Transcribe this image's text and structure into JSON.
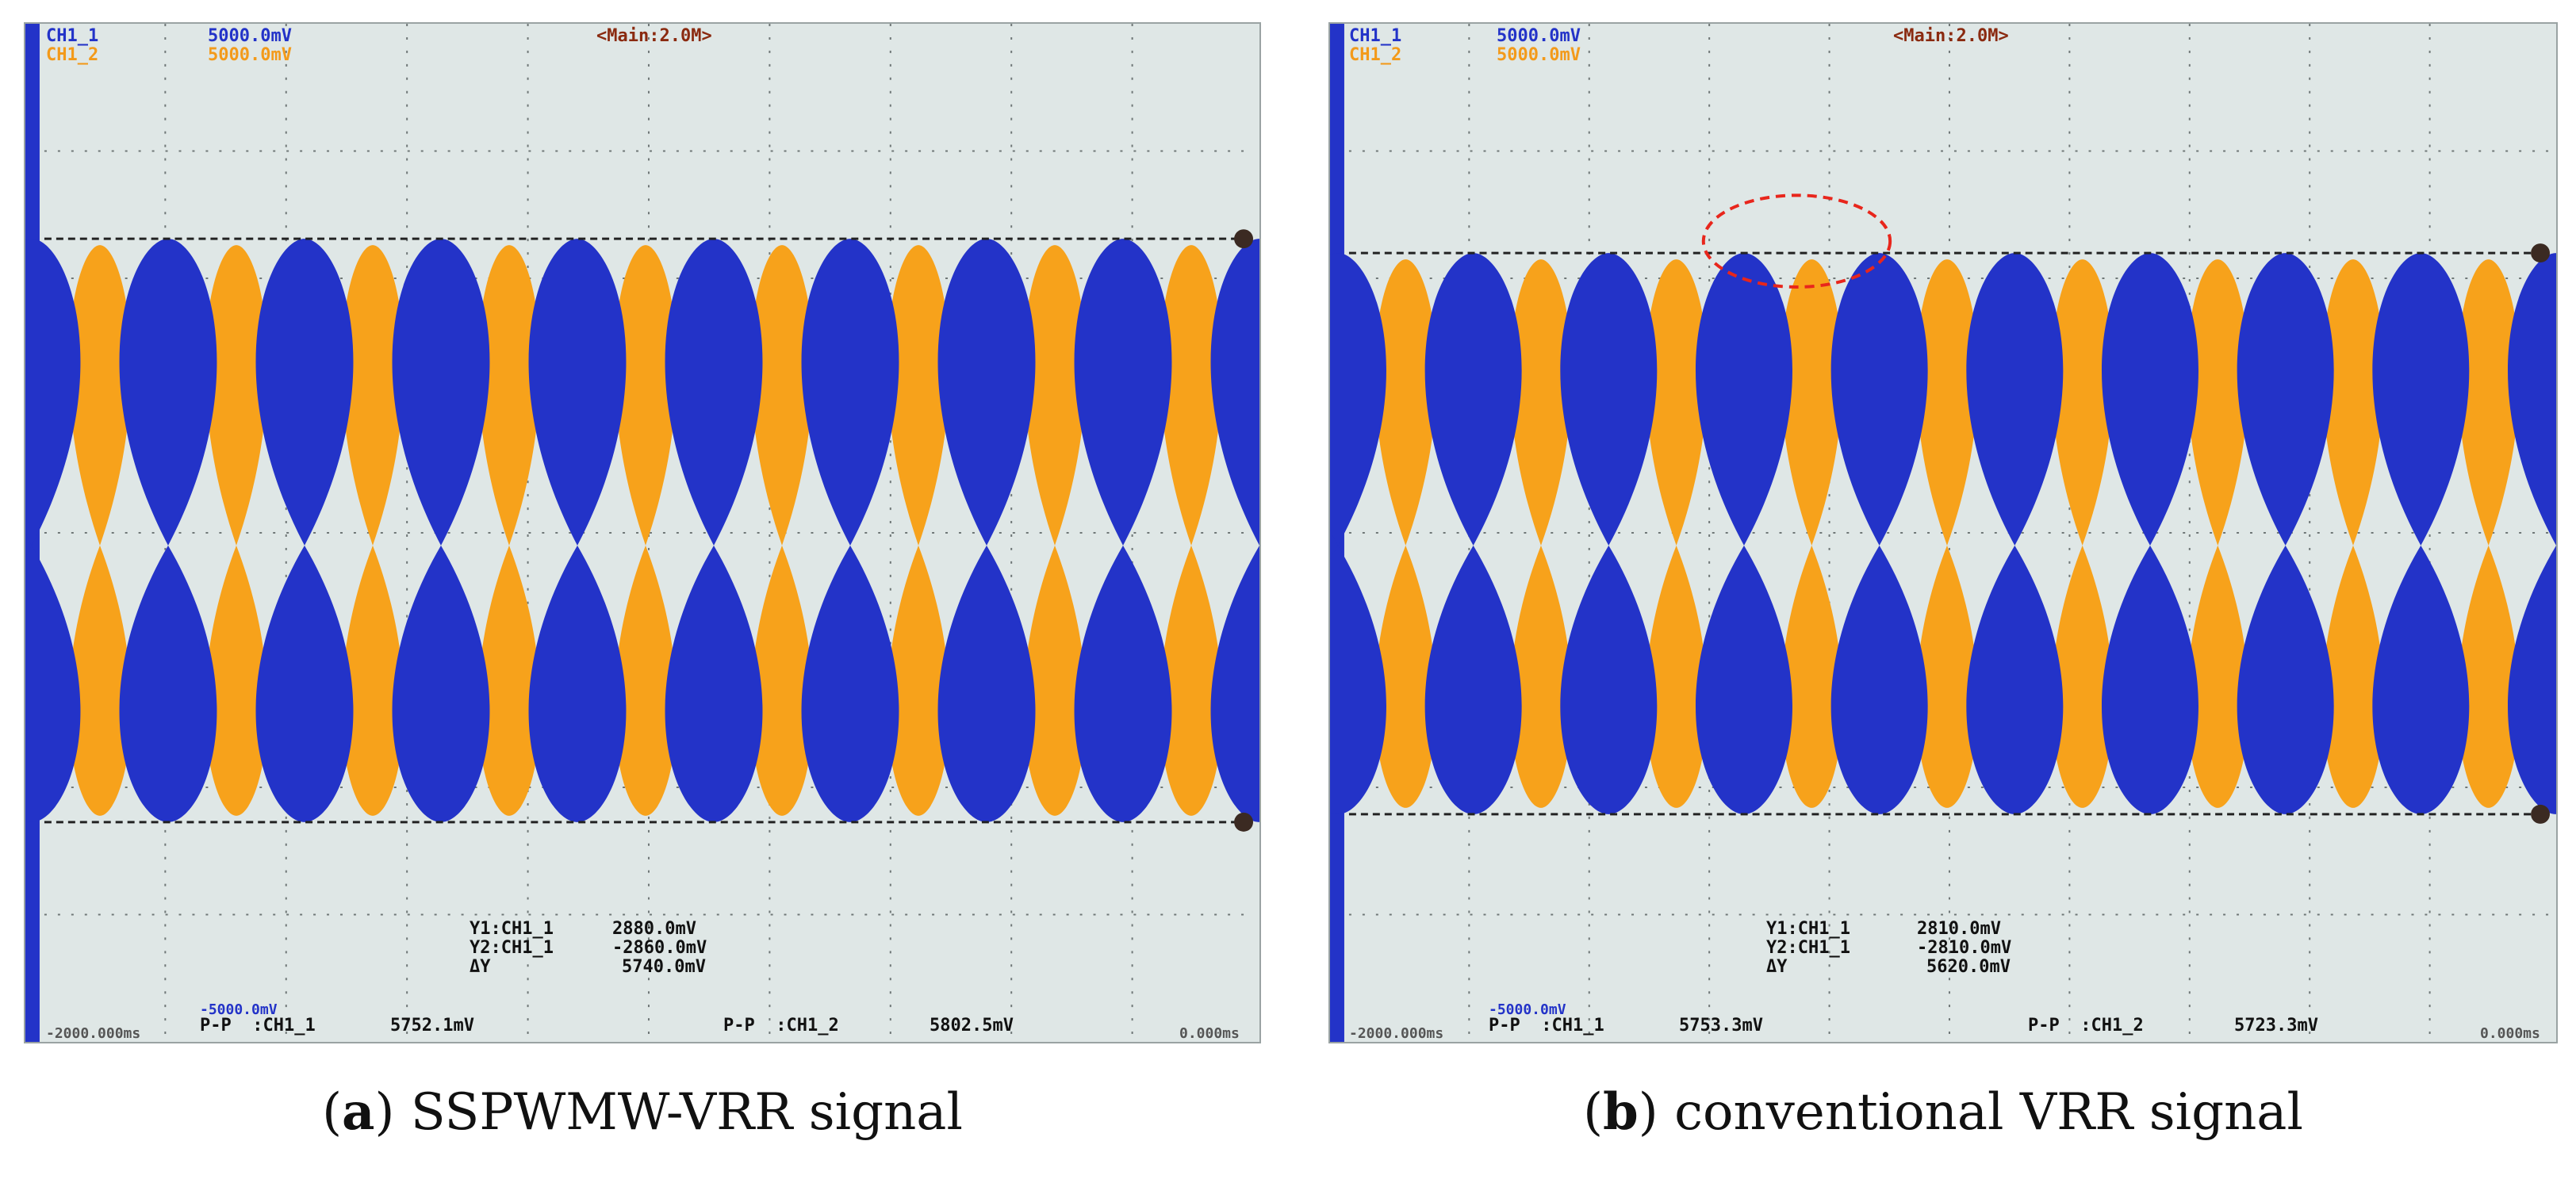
{
  "panels": [
    {
      "id": "a",
      "header": {
        "ch1_name": "CH1_1",
        "ch1_scale": "5000.0mV",
        "ch2_name": "CH1_2",
        "ch2_scale": "5000.0mV",
        "main": "<Main:2.0M>"
      },
      "cursors": {
        "y1_label": "Y1:CH1_1",
        "y1_value": "2880.0mV",
        "y2_label": "Y2:CH1_1",
        "y2_value": "-2860.0mV",
        "dy_label": "ΔY",
        "dy_value": "5740.0mV"
      },
      "measurements": {
        "pp1_label": "P-P  :CH1_1",
        "pp1_value": "5752.1mV",
        "pp2_label": "P-P  :CH1_2",
        "pp2_value": "5802.5mV"
      },
      "footer": {
        "offset": "-5000.0mV",
        "time_left": "-2000.000ms",
        "time_right": "0.000ms"
      },
      "caption_letter": "a",
      "caption_text": "SSPWMW-VRR signal",
      "highlight": false
    },
    {
      "id": "b",
      "header": {
        "ch1_name": "CH1_1",
        "ch1_scale": "5000.0mV",
        "ch2_name": "CH1_2",
        "ch2_scale": "5000.0mV",
        "main": "<Main:2.0M>"
      },
      "cursors": {
        "y1_label": "Y1:CH1_1",
        "y1_value": "2810.0mV",
        "y2_label": "Y2:CH1_1",
        "y2_value": "-2810.0mV",
        "dy_label": "ΔY",
        "dy_value": "5620.0mV"
      },
      "measurements": {
        "pp1_label": "P-P  :CH1_1",
        "pp1_value": "5753.3mV",
        "pp2_label": "P-P  :CH1_2",
        "pp2_value": "5723.3mV"
      },
      "footer": {
        "offset": "-5000.0mV",
        "time_left": "-2000.000ms",
        "time_right": "0.000ms"
      },
      "caption_letter": "b",
      "caption_text": "conventional VRR signal",
      "highlight": true
    }
  ],
  "colors": {
    "ch1": "#2333c8",
    "ch2": "#f7a21b",
    "screen": "#dfe7e6",
    "grid": "#6f7777",
    "highlight": "#e8261c"
  }
}
